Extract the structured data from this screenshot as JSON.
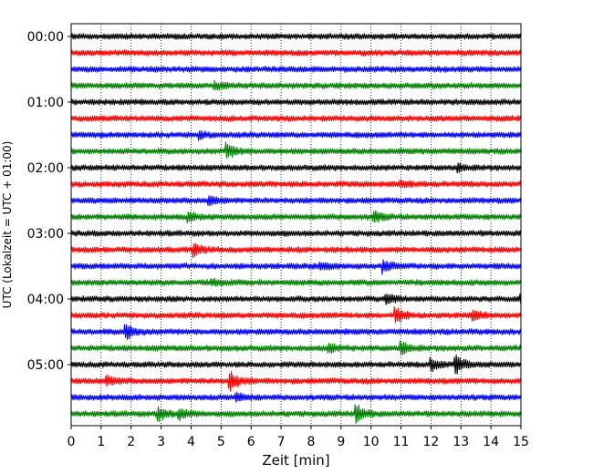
{
  "chart_data": {
    "type": "line",
    "subtype": "helicorder",
    "title": "",
    "xlabel": "Zeit  [min]",
    "ylabel": "UTC (Lokalzeit = UTC + 01:00)",
    "xlim": [
      0,
      15
    ],
    "x_ticks": [
      "0",
      "1",
      "2",
      "3",
      "4",
      "5",
      "6",
      "7",
      "8",
      "9",
      "10",
      "11",
      "12",
      "13",
      "14",
      "15"
    ],
    "y_tick_labels": [
      "00:00",
      "01:00",
      "02:00",
      "03:00",
      "04:00",
      "05:00"
    ],
    "y_tick_trace_index": [
      0,
      4,
      8,
      12,
      16,
      20
    ],
    "grid": "vertical dotted at each minute",
    "trace_colors": [
      "#000000",
      "#ff0000",
      "#0000ff",
      "#008000"
    ],
    "trace_count": 24,
    "trace_minutes": 15,
    "traces": [
      {
        "start": "00:00",
        "color": "#000000",
        "events": []
      },
      {
        "start": "00:15",
        "color": "#ff0000",
        "events": []
      },
      {
        "start": "00:30",
        "color": "#0000ff",
        "events": []
      },
      {
        "start": "00:45",
        "color": "#008000",
        "events": [
          {
            "t": 4.8,
            "a": 3
          }
        ]
      },
      {
        "start": "01:00",
        "color": "#000000",
        "events": []
      },
      {
        "start": "01:15",
        "color": "#ff0000",
        "events": []
      },
      {
        "start": "01:30",
        "color": "#0000ff",
        "events": [
          {
            "t": 4.3,
            "a": 3
          }
        ]
      },
      {
        "start": "01:45",
        "color": "#008000",
        "events": [
          {
            "t": 5.2,
            "a": 7
          }
        ]
      },
      {
        "start": "02:00",
        "color": "#000000",
        "events": [
          {
            "t": 12.9,
            "a": 3
          }
        ]
      },
      {
        "start": "02:15",
        "color": "#ff0000",
        "events": [
          {
            "t": 11.0,
            "a": 3
          }
        ]
      },
      {
        "start": "02:30",
        "color": "#0000ff",
        "events": [
          {
            "t": 4.6,
            "a": 4
          }
        ]
      },
      {
        "start": "02:45",
        "color": "#008000",
        "events": [
          {
            "t": 3.9,
            "a": 4
          },
          {
            "t": 10.1,
            "a": 5
          }
        ]
      },
      {
        "start": "03:00",
        "color": "#000000",
        "events": []
      },
      {
        "start": "03:15",
        "color": "#ff0000",
        "events": [
          {
            "t": 4.1,
            "a": 6
          }
        ]
      },
      {
        "start": "03:30",
        "color": "#0000ff",
        "events": [
          {
            "t": 8.3,
            "a": 3
          },
          {
            "t": 10.4,
            "a": 6
          }
        ]
      },
      {
        "start": "03:45",
        "color": "#008000",
        "events": [
          {
            "t": 4.7,
            "a": 3
          }
        ]
      },
      {
        "start": "04:00",
        "color": "#000000",
        "events": [
          {
            "t": 10.5,
            "a": 6
          },
          {
            "t": 15.0,
            "a": 6
          }
        ]
      },
      {
        "start": "04:15",
        "color": "#ff0000",
        "events": [
          {
            "t": 10.8,
            "a": 8
          },
          {
            "t": 13.4,
            "a": 6
          }
        ]
      },
      {
        "start": "04:30",
        "color": "#0000ff",
        "events": [
          {
            "t": 1.8,
            "a": 8
          }
        ]
      },
      {
        "start": "04:45",
        "color": "#008000",
        "events": [
          {
            "t": 8.6,
            "a": 4
          },
          {
            "t": 11.0,
            "a": 6
          }
        ]
      },
      {
        "start": "05:00",
        "color": "#000000",
        "events": [
          {
            "t": 12.0,
            "a": 6
          },
          {
            "t": 12.8,
            "a": 10
          }
        ]
      },
      {
        "start": "05:15",
        "color": "#ff0000",
        "events": [
          {
            "t": 1.2,
            "a": 4
          },
          {
            "t": 5.3,
            "a": 10
          }
        ]
      },
      {
        "start": "05:30",
        "color": "#0000ff",
        "events": [
          {
            "t": 5.5,
            "a": 4
          }
        ]
      },
      {
        "start": "05:45",
        "color": "#008000",
        "events": [
          {
            "t": 2.9,
            "a": 7
          },
          {
            "t": 3.6,
            "a": 5
          },
          {
            "t": 9.5,
            "a": 9
          }
        ]
      }
    ]
  }
}
